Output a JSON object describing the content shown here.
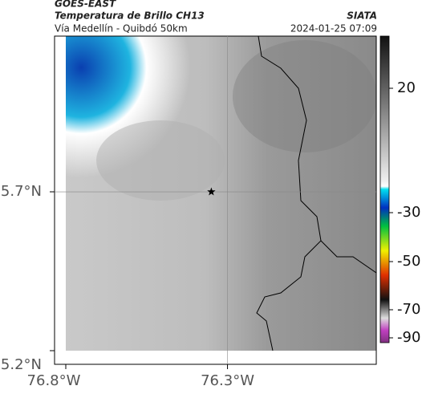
{
  "header": {
    "satellite": "GOES-EAST",
    "product": "Temperatura de Brillo CH13",
    "route": "Vía Medellín - Quibdó 50km",
    "source": "SIATA",
    "timestamp": "2024-01-25 07:09"
  },
  "map": {
    "xlim": [
      -76.8,
      -75.84
    ],
    "ylim": [
      5.2,
      6.19
    ],
    "xticks": [
      {
        "value": -76.8,
        "label": "76.8°W"
      },
      {
        "value": -76.3,
        "label": "76.3°W"
      }
    ],
    "yticks": [
      {
        "value": 5.7,
        "label": "5.7°N"
      },
      {
        "value": 5.2,
        "label": "5.2°N"
      }
    ],
    "marker": {
      "lon": -76.35,
      "lat": 5.7
    }
  },
  "colorbar": {
    "ticks": [
      20,
      -30,
      -50,
      -70,
      -90
    ]
  }
}
